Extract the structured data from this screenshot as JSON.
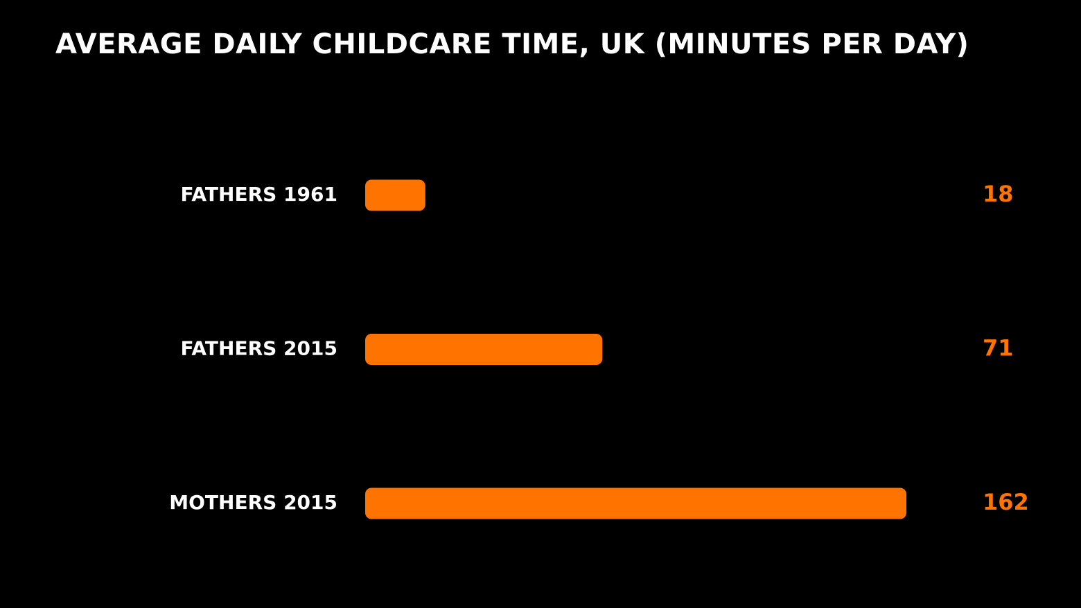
{
  "chart_data": {
    "type": "bar",
    "orientation": "horizontal",
    "title": "AVERAGE DAILY CHILDCARE TIME, UK (MINUTES PER DAY)",
    "categories": [
      "FATHERS 1961",
      "FATHERS 2015",
      "MOTHERS 2015"
    ],
    "values": [
      18,
      71,
      162
    ],
    "color": "#ff7300"
  }
}
